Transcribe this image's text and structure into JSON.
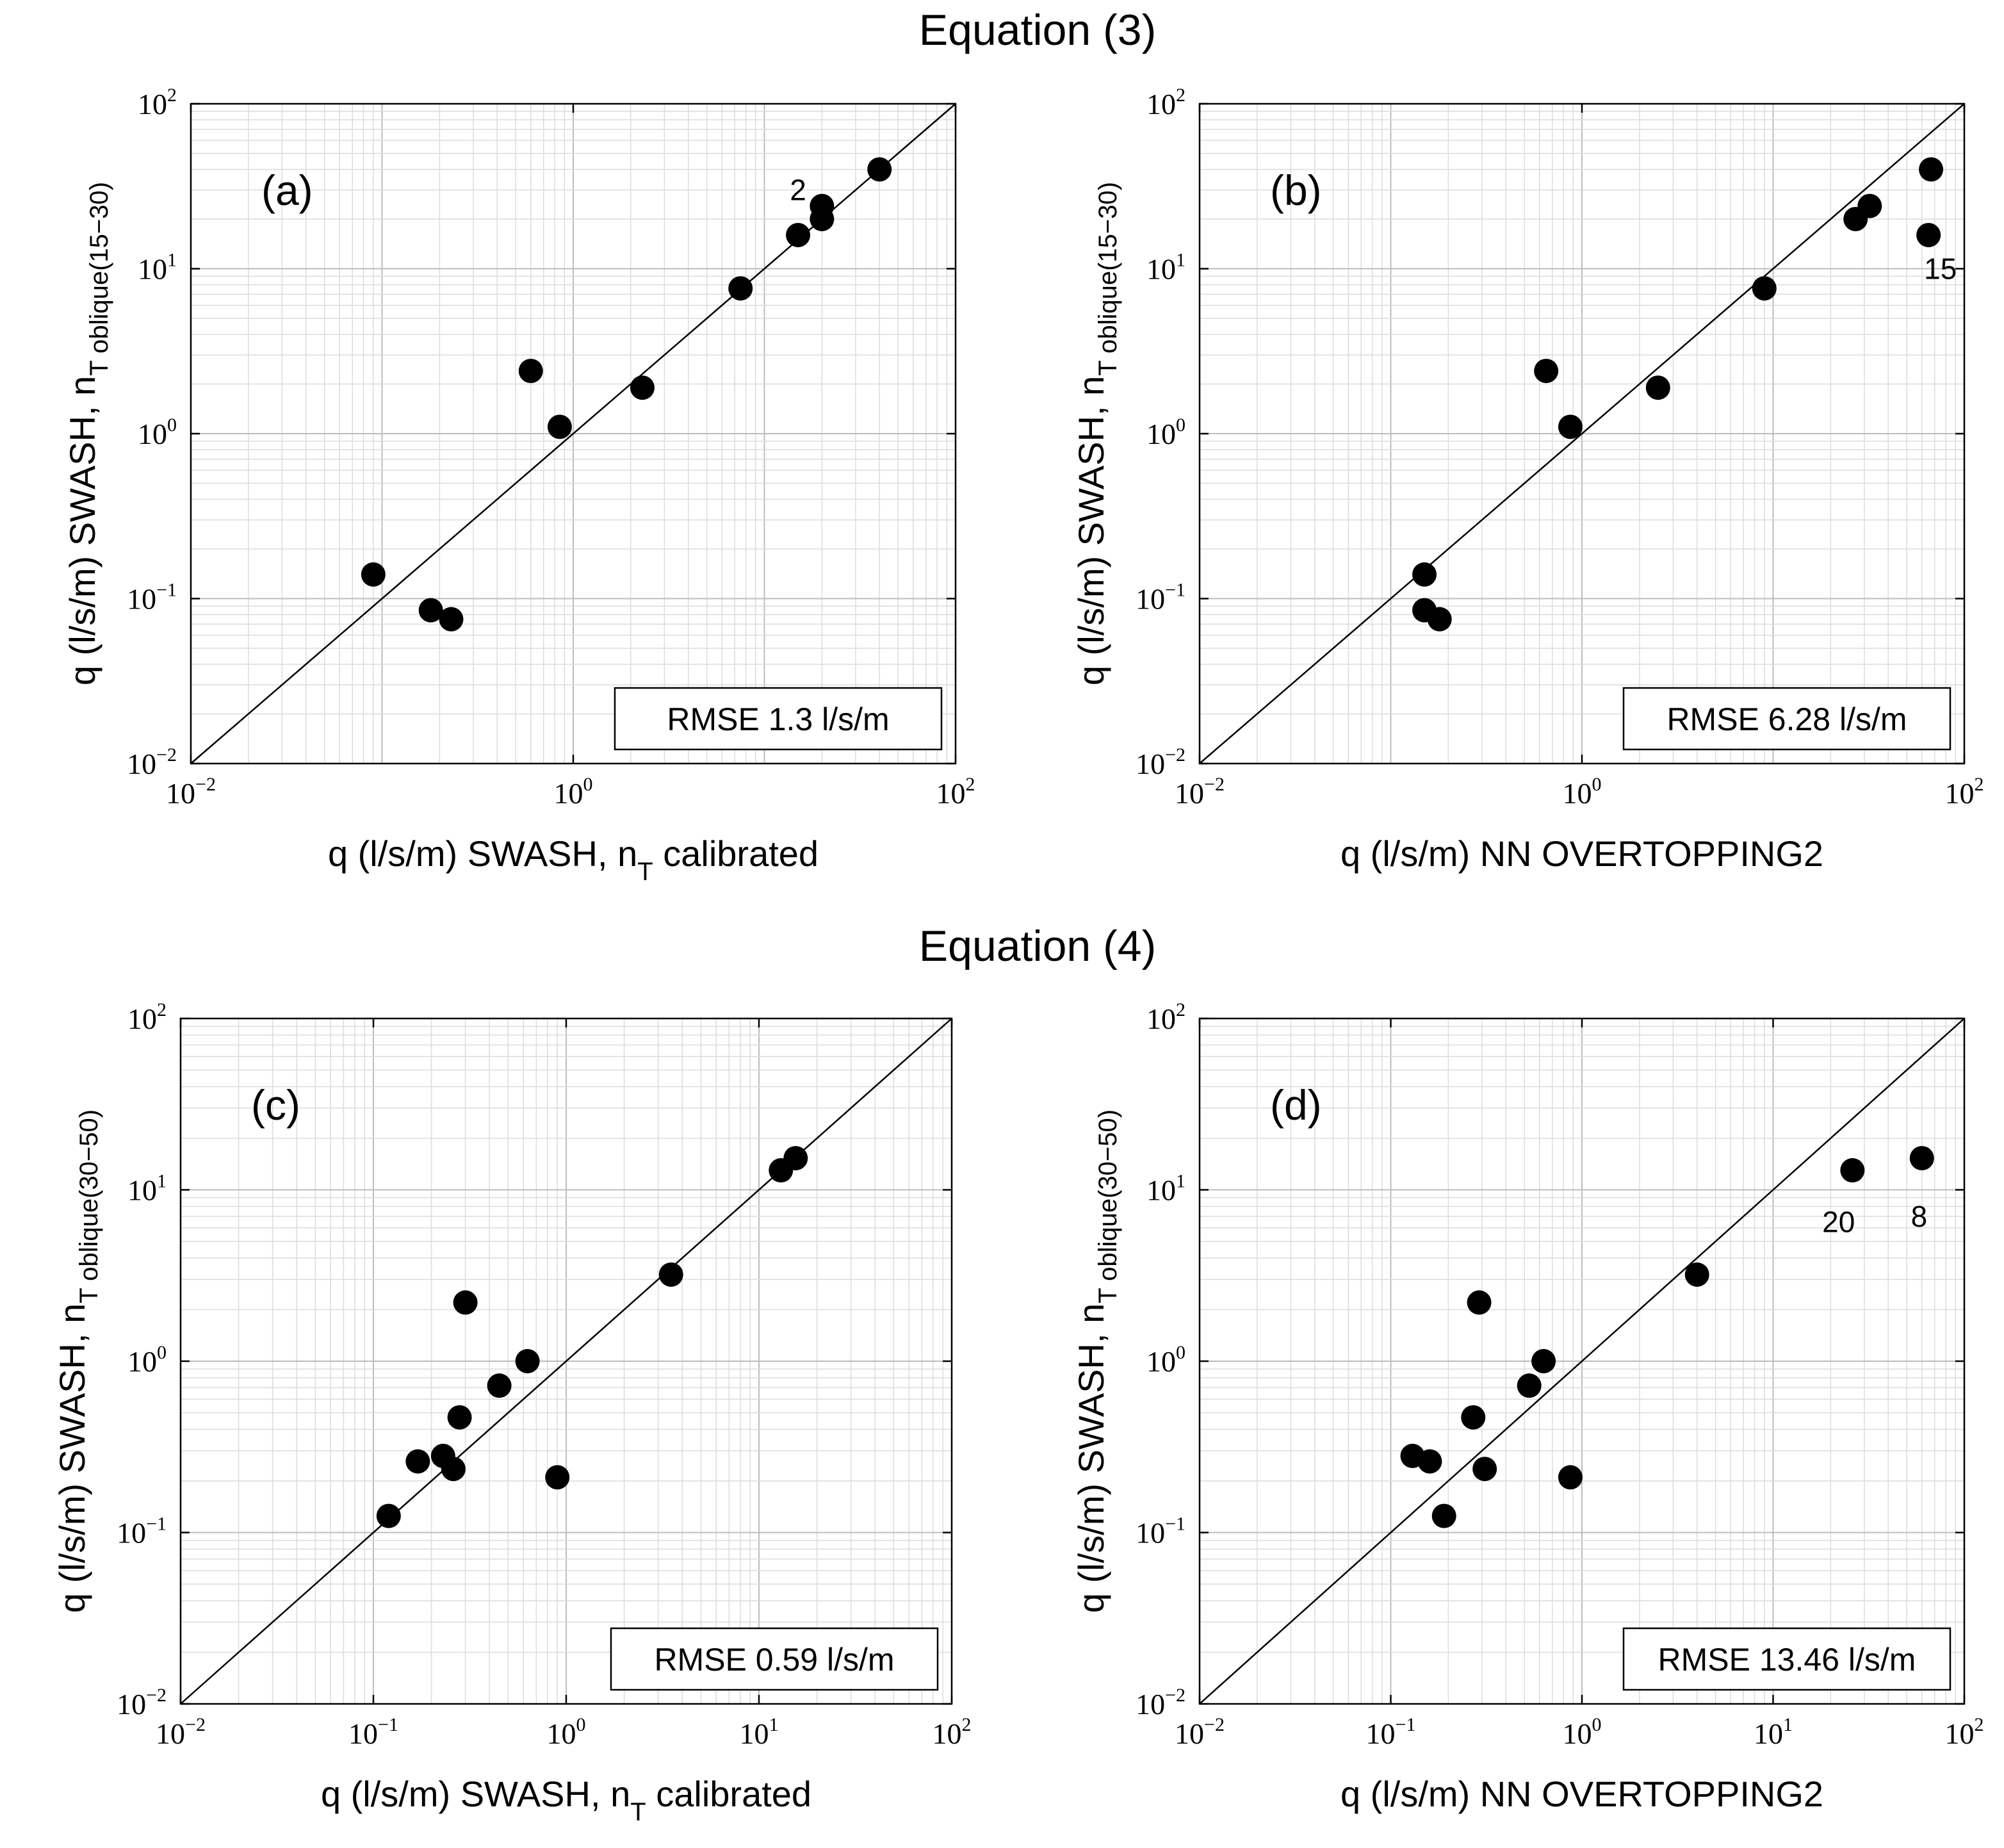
{
  "section_titles": [
    "Equation (3)",
    "Equation (4)"
  ],
  "chart_data": [
    {
      "type": "scatter",
      "panel": "(a)",
      "xlabel": "q (l/s/m) SWASH, n",
      "xlabel_sub": "T",
      "xlabel_suffix": " calibrated",
      "ylabel": "q (l/s/m) SWASH, n",
      "ylabel_sub": "T oblique(15−30)",
      "xscale": "log",
      "yscale": "log",
      "xlim": [
        0.01,
        100
      ],
      "ylim": [
        0.01,
        100
      ],
      "reference_line": "1:1",
      "rmse": "RMSE 1.3 l/s/m",
      "x": [
        0.09,
        0.18,
        0.23,
        0.6,
        0.85,
        2.3,
        7.5,
        15,
        20,
        20,
        40
      ],
      "y": [
        0.14,
        0.085,
        0.075,
        2.4,
        1.1,
        1.9,
        7.6,
        16,
        20,
        24,
        40
      ],
      "annotations": [
        {
          "text": "2",
          "x": 15,
          "y": 30
        }
      ]
    },
    {
      "type": "scatter",
      "panel": "(b)",
      "xlabel": "q (l/s/m) NN OVERTOPPING2",
      "xlabel_sub": "",
      "xlabel_suffix": "",
      "ylabel": "q (l/s/m) SWASH, n",
      "ylabel_sub": "T oblique(15−30)",
      "xscale": "log",
      "yscale": "log",
      "xlim": [
        0.01,
        100
      ],
      "ylim": [
        0.01,
        100
      ],
      "reference_line": "1:1",
      "rmse": "RMSE 6.28 l/s/m",
      "x": [
        0.15,
        0.15,
        0.18,
        0.65,
        0.87,
        2.5,
        9,
        27,
        32,
        65,
        67
      ],
      "y": [
        0.14,
        0.085,
        0.075,
        2.4,
        1.1,
        1.9,
        7.6,
        20,
        24,
        16,
        40
      ],
      "annotations": [
        {
          "text": "15",
          "x": 75,
          "y": 10
        }
      ]
    },
    {
      "type": "scatter",
      "panel": "(c)",
      "xlabel": "q (l/s/m) SWASH, n",
      "xlabel_sub": "T",
      "xlabel_suffix": " calibrated",
      "ylabel": "q (l/s/m) SWASH, n",
      "ylabel_sub": "T oblique(30−50)",
      "xscale": "log",
      "yscale": "log",
      "xlim": [
        0.01,
        100
      ],
      "ylim": [
        0.01,
        100
      ],
      "reference_line": "1:1",
      "rmse": "RMSE 0.59 l/s/m",
      "x": [
        0.12,
        0.17,
        0.23,
        0.26,
        0.28,
        0.3,
        0.45,
        0.63,
        0.9,
        3.5,
        13,
        15.5
      ],
      "y": [
        0.125,
        0.26,
        0.28,
        0.235,
        0.47,
        2.2,
        0.72,
        1.0,
        0.21,
        3.2,
        13,
        15.3
      ],
      "annotations": []
    },
    {
      "type": "scatter",
      "panel": "(d)",
      "xlabel": "q (l/s/m) NN OVERTOPPING2",
      "xlabel_sub": "",
      "xlabel_suffix": "",
      "ylabel": "q (l/s/m) SWASH, n",
      "ylabel_sub": "T oblique(30−50)",
      "xscale": "log",
      "yscale": "log",
      "xlim": [
        0.01,
        100
      ],
      "ylim": [
        0.01,
        100
      ],
      "reference_line": "1:1",
      "rmse": "RMSE 13.46 l/s/m",
      "x": [
        0.13,
        0.16,
        0.19,
        0.27,
        0.29,
        0.31,
        0.53,
        0.63,
        0.87,
        4,
        26,
        60
      ],
      "y": [
        0.28,
        0.26,
        0.125,
        0.47,
        2.2,
        0.235,
        0.72,
        1.0,
        0.21,
        3.2,
        13,
        15.3
      ],
      "annotations": [
        {
          "text": "20",
          "x": 22,
          "y": 6.5
        },
        {
          "text": "8",
          "x": 58,
          "y": 7
        }
      ]
    }
  ]
}
